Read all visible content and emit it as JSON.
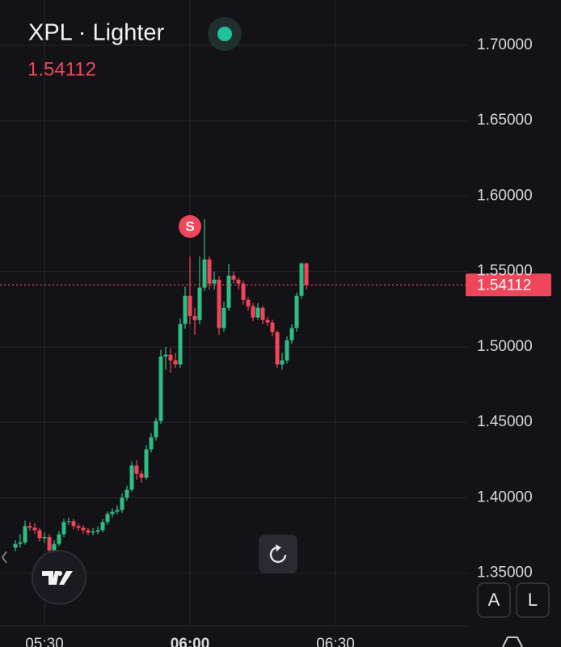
{
  "chart_data": {
    "type": "candlestick",
    "title": "XPL · Lighter",
    "last_price": {
      "value": 1.54112,
      "label": "1.54112"
    },
    "up_color": "#2ebd85",
    "down_color": "#f0465a",
    "grid": true,
    "ylim": [
      1.315,
      1.73
    ],
    "yticks": [
      {
        "value": 1.7,
        "label": "1.70000"
      },
      {
        "value": 1.65,
        "label": "1.65000"
      },
      {
        "value": 1.6,
        "label": "1.60000"
      },
      {
        "value": 1.55,
        "label": "1.55000"
      },
      {
        "value": 1.5,
        "label": "1.50000"
      },
      {
        "value": 1.45,
        "label": "1.45000"
      },
      {
        "value": 1.4,
        "label": "1.40000"
      },
      {
        "value": 1.35,
        "label": "1.35000"
      }
    ],
    "xticks": [
      "05:30",
      "06:00",
      "06:30"
    ],
    "x": [
      "05:24",
      "05:25",
      "05:26",
      "05:27",
      "05:28",
      "05:29",
      "05:30",
      "05:31",
      "05:32",
      "05:33",
      "05:34",
      "05:35",
      "05:36",
      "05:37",
      "05:38",
      "05:39",
      "05:40",
      "05:41",
      "05:42",
      "05:43",
      "05:44",
      "05:45",
      "05:46",
      "05:47",
      "05:48",
      "05:49",
      "05:50",
      "05:51",
      "05:52",
      "05:53",
      "05:54",
      "05:55",
      "05:56",
      "05:57",
      "05:58",
      "05:59",
      "06:00",
      "06:01",
      "06:02",
      "06:03",
      "06:04",
      "06:05",
      "06:06",
      "06:07",
      "06:08",
      "06:09",
      "06:10",
      "06:11",
      "06:12",
      "06:13",
      "06:14",
      "06:15",
      "06:16",
      "06:17",
      "06:18",
      "06:19",
      "06:20",
      "06:21",
      "06:22",
      "06:23",
      "06:24"
    ],
    "open": [
      1.367,
      1.3694,
      1.3705,
      1.3812,
      1.3801,
      1.3785,
      1.3732,
      1.374,
      1.3651,
      1.3694,
      1.3758,
      1.3839,
      1.3845,
      1.3812,
      1.3801,
      1.3785,
      1.3769,
      1.3775,
      1.3785,
      1.3839,
      1.3892,
      1.3908,
      1.3919,
      1.4,
      1.4053,
      1.4214,
      1.416,
      1.4133,
      1.4321,
      1.4401,
      1.4509,
      1.4937,
      1.4948,
      1.4911,
      1.4884,
      1.5152,
      1.5339,
      1.5205,
      1.5178,
      1.5393,
      1.558,
      1.542,
      1.5446,
      1.5125,
      1.5259,
      1.5473,
      1.5446,
      1.542,
      1.5312,
      1.527,
      1.5195,
      1.5259,
      1.5178,
      1.5162,
      1.5098,
      1.4884,
      1.4911,
      1.5044,
      1.5125,
      1.5339,
      1.5554
    ],
    "high": [
      1.372,
      1.376,
      1.385,
      1.384,
      1.383,
      1.38,
      1.377,
      1.376,
      1.372,
      1.378,
      1.386,
      1.387,
      1.386,
      1.383,
      1.382,
      1.38,
      1.38,
      1.381,
      1.386,
      1.391,
      1.393,
      1.395,
      1.403,
      1.408,
      1.424,
      1.425,
      1.418,
      1.435,
      1.443,
      1.453,
      1.498,
      1.5,
      1.499,
      1.496,
      1.519,
      1.54,
      1.56,
      1.526,
      1.56,
      1.5848,
      1.56,
      1.55,
      1.547,
      1.53,
      1.555,
      1.55,
      1.546,
      1.544,
      1.533,
      1.529,
      1.529,
      1.527,
      1.52,
      1.518,
      1.511,
      1.496,
      1.507,
      1.515,
      1.536,
      1.556,
      1.556
    ],
    "low": [
      1.3645,
      1.367,
      1.369,
      1.378,
      1.376,
      1.371,
      1.37,
      1.362,
      1.363,
      1.368,
      1.374,
      1.382,
      1.379,
      1.378,
      1.376,
      1.375,
      1.375,
      1.376,
      1.377,
      1.382,
      1.387,
      1.389,
      1.39,
      1.398,
      1.404,
      1.412,
      1.41,
      1.412,
      1.43,
      1.438,
      1.449,
      1.485,
      1.483,
      1.486,
      1.486,
      1.512,
      1.515,
      1.508,
      1.515,
      1.537,
      1.538,
      1.538,
      1.508,
      1.51,
      1.524,
      1.542,
      1.538,
      1.528,
      1.524,
      1.517,
      1.518,
      1.515,
      1.514,
      1.507,
      1.486,
      1.485,
      1.489,
      1.502,
      1.51,
      1.532,
      1.538
    ],
    "close": [
      1.3694,
      1.3705,
      1.3812,
      1.3801,
      1.3785,
      1.3732,
      1.374,
      1.3651,
      1.3694,
      1.3758,
      1.3839,
      1.3845,
      1.3812,
      1.3801,
      1.3785,
      1.3769,
      1.3775,
      1.3785,
      1.3839,
      1.3892,
      1.3908,
      1.3919,
      1.4,
      1.4053,
      1.4214,
      1.416,
      1.4133,
      1.4321,
      1.4401,
      1.4509,
      1.4937,
      1.4948,
      1.4911,
      1.4884,
      1.5152,
      1.5339,
      1.5205,
      1.5178,
      1.5393,
      1.558,
      1.542,
      1.5446,
      1.5125,
      1.5259,
      1.5473,
      1.5446,
      1.542,
      1.5312,
      1.527,
      1.5195,
      1.5259,
      1.5178,
      1.5162,
      1.5098,
      1.4884,
      1.4911,
      1.5044,
      1.5125,
      1.5339,
      1.5554,
      1.54112
    ],
    "markers": [
      {
        "label": "S",
        "x": "06:00"
      }
    ],
    "buttons": [
      "A",
      "L"
    ]
  }
}
